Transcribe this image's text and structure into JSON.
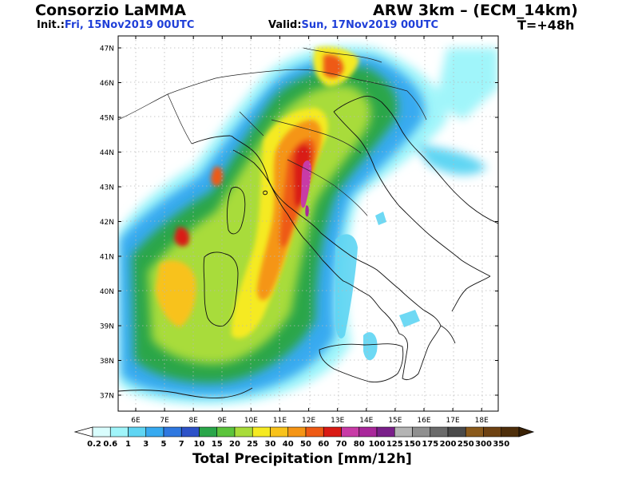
{
  "header": {
    "provider": "Consorzio LaMMA",
    "model": "ARW 3km – (ECM_14km)",
    "init_label": "Init.:",
    "init_value": "Fri, 15Nov2019 00UTC",
    "valid_label": "Valid:",
    "valid_value": "Sun, 17Nov2019 00UTC",
    "forecast_step": "T=+48h"
  },
  "map": {
    "lat_labels": [
      "47N",
      "46N",
      "45N",
      "44N",
      "43N",
      "42N",
      "41N",
      "40N",
      "39N",
      "38N",
      "37N"
    ],
    "lon_labels": [
      "6E",
      "7E",
      "8E",
      "9E",
      "10E",
      "11E",
      "12E",
      "13E",
      "14E",
      "15E",
      "16E",
      "17E",
      "18E"
    ],
    "lat_values": [
      47,
      46,
      45,
      44,
      43,
      42,
      41,
      40,
      39,
      38,
      37
    ],
    "lon_values": [
      6,
      7,
      8,
      9,
      10,
      11,
      12,
      13,
      14,
      15,
      16,
      17,
      18
    ]
  },
  "colorbar": {
    "title": "Total Precipitation [mm/12h]",
    "labels": [
      "0.2",
      "0.6",
      "1",
      "3",
      "5",
      "7",
      "10",
      "15",
      "20",
      "25",
      "30",
      "40",
      "50",
      "60",
      "70",
      "80",
      "100",
      "125",
      "150",
      "175",
      "200",
      "250",
      "300",
      "350"
    ],
    "colors": [
      "#d9fdfd",
      "#a0f5fa",
      "#5fd5f3",
      "#37aaf0",
      "#2f78e0",
      "#2d52c8",
      "#2aa64a",
      "#5cc43c",
      "#a8dc3a",
      "#f5ea22",
      "#f8c21a",
      "#f59515",
      "#ee5a14",
      "#d91a14",
      "#c83ba6",
      "#a9279b",
      "#7a1f8a",
      "#b4b4b4",
      "#8f8f8f",
      "#6b6b6b",
      "#4a4a4a",
      "#8a5a1c",
      "#6e4212",
      "#4e2e0a"
    ]
  }
}
